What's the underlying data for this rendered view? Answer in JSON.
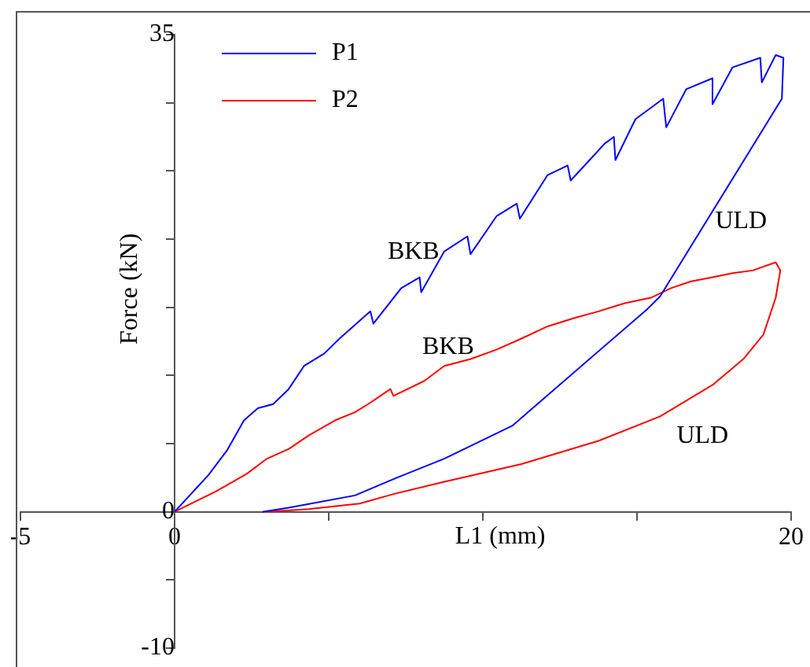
{
  "chart_data": {
    "type": "line",
    "xlabel": "L1 (mm)",
    "ylabel": "Force (kN)",
    "xlim": [
      -5,
      20
    ],
    "ylim": [
      -10,
      35
    ],
    "xticks": [
      -5,
      0,
      {
        "value": 5,
        "label": null
      },
      {
        "value": 10,
        "label": null
      },
      {
        "value": 15,
        "label": null
      },
      20
    ],
    "yticks": [
      -10,
      {
        "value": -5,
        "label": null
      },
      0,
      {
        "value": 5,
        "label": null
      },
      {
        "value": 10,
        "label": null
      },
      {
        "value": 15,
        "label": null
      },
      {
        "value": 20,
        "label": null
      },
      {
        "value": 25,
        "label": null
      },
      {
        "value": 30,
        "label": null
      },
      35
    ],
    "grid": false,
    "legend": "top left",
    "marker": "none",
    "line_style": "solid",
    "series": [
      {
        "name": "P1",
        "color": "#0000ff",
        "x": [
          0,
          1.1,
          1.7,
          2.25,
          2.7,
          3.2,
          3.7,
          4.2,
          4.85,
          5.35,
          6.35,
          6.45,
          7.35,
          7.95,
          8.0,
          8.75,
          9.5,
          9.6,
          10.45,
          11.1,
          11.2,
          12.1,
          12.75,
          12.85,
          13.95,
          14.25,
          14.3,
          14.95,
          15.85,
          15.95,
          16.6,
          17.45,
          17.45,
          18.1,
          19.0,
          19.05,
          19.5,
          19.75,
          19.7,
          15.75,
          15.35,
          10.95,
          8.75,
          7.1,
          5.85,
          3.7,
          2.85
        ],
        "values": [
          0,
          2.7,
          4.5,
          6.7,
          7.6,
          7.9,
          9.0,
          10.7,
          11.6,
          12.7,
          14.7,
          13.8,
          16.4,
          17.2,
          16.1,
          19.1,
          20.2,
          18.9,
          21.7,
          22.6,
          21.5,
          24.7,
          25.4,
          24.3,
          27.0,
          27.5,
          25.8,
          28.8,
          30.3,
          28.2,
          31.0,
          31.8,
          29.9,
          32.6,
          33.3,
          31.5,
          33.5,
          33.3,
          30.3,
          15.8,
          14.9,
          6.3,
          3.9,
          2.4,
          1.2,
          0.3,
          0
        ]
      },
      {
        "name": "P2",
        "color": "#ff0000",
        "x": [
          0,
          1.35,
          2.35,
          3.0,
          3.7,
          4.35,
          5.2,
          5.85,
          6.35,
          7.0,
          7.1,
          8.1,
          8.75,
          9.6,
          10.45,
          11.25,
          12.1,
          12.95,
          13.75,
          14.6,
          15.45,
          16.1,
          16.75,
          17.45,
          18.1,
          18.75,
          19.5,
          19.65,
          19.5,
          19.1,
          18.45,
          17.45,
          15.75,
          13.75,
          11.25,
          8.75,
          7.1,
          6.0,
          4.35,
          3.0
        ],
        "values": [
          0,
          1.5,
          2.8,
          3.9,
          4.6,
          5.6,
          6.7,
          7.3,
          8.0,
          9.0,
          8.5,
          9.6,
          10.7,
          11.2,
          11.9,
          12.7,
          13.6,
          14.2,
          14.7,
          15.3,
          15.7,
          16.4,
          16.9,
          17.2,
          17.5,
          17.7,
          18.3,
          17.7,
          15.7,
          13.0,
          11.2,
          9.3,
          7.0,
          5.2,
          3.5,
          2.2,
          1.3,
          0.6,
          0.2,
          0
        ]
      }
    ],
    "annotations": [
      "BKB",
      "BKB",
      "ULD",
      "ULD"
    ]
  }
}
